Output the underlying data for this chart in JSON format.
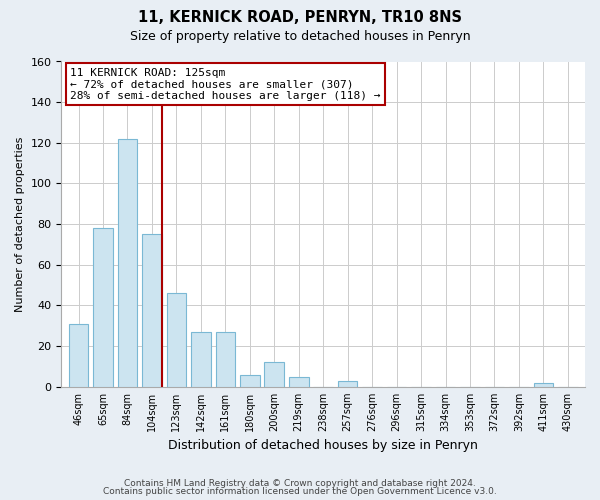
{
  "title": "11, KERNICK ROAD, PENRYN, TR10 8NS",
  "subtitle": "Size of property relative to detached houses in Penryn",
  "xlabel": "Distribution of detached houses by size in Penryn",
  "ylabel": "Number of detached properties",
  "bar_labels": [
    "46sqm",
    "65sqm",
    "84sqm",
    "104sqm",
    "123sqm",
    "142sqm",
    "161sqm",
    "180sqm",
    "200sqm",
    "219sqm",
    "238sqm",
    "257sqm",
    "276sqm",
    "296sqm",
    "315sqm",
    "334sqm",
    "353sqm",
    "372sqm",
    "392sqm",
    "411sqm",
    "430sqm"
  ],
  "bar_values": [
    31,
    78,
    122,
    75,
    46,
    27,
    27,
    6,
    12,
    5,
    0,
    3,
    0,
    0,
    0,
    0,
    0,
    0,
    0,
    2,
    0
  ],
  "bar_color": "#cce4f0",
  "bar_edge_color": "#7ab8d4",
  "vline_color": "#aa0000",
  "annotation_text": "11 KERNICK ROAD: 125sqm\n← 72% of detached houses are smaller (307)\n28% of semi-detached houses are larger (118) →",
  "annotation_box_color": "white",
  "annotation_box_edge": "#aa0000",
  "ylim": [
    0,
    160
  ],
  "yticks": [
    0,
    20,
    40,
    60,
    80,
    100,
    120,
    140,
    160
  ],
  "footer1": "Contains HM Land Registry data © Crown copyright and database right 2024.",
  "footer2": "Contains public sector information licensed under the Open Government Licence v3.0.",
  "bg_color": "#e8eef4",
  "plot_bg_color": "white",
  "grid_color": "#cccccc"
}
